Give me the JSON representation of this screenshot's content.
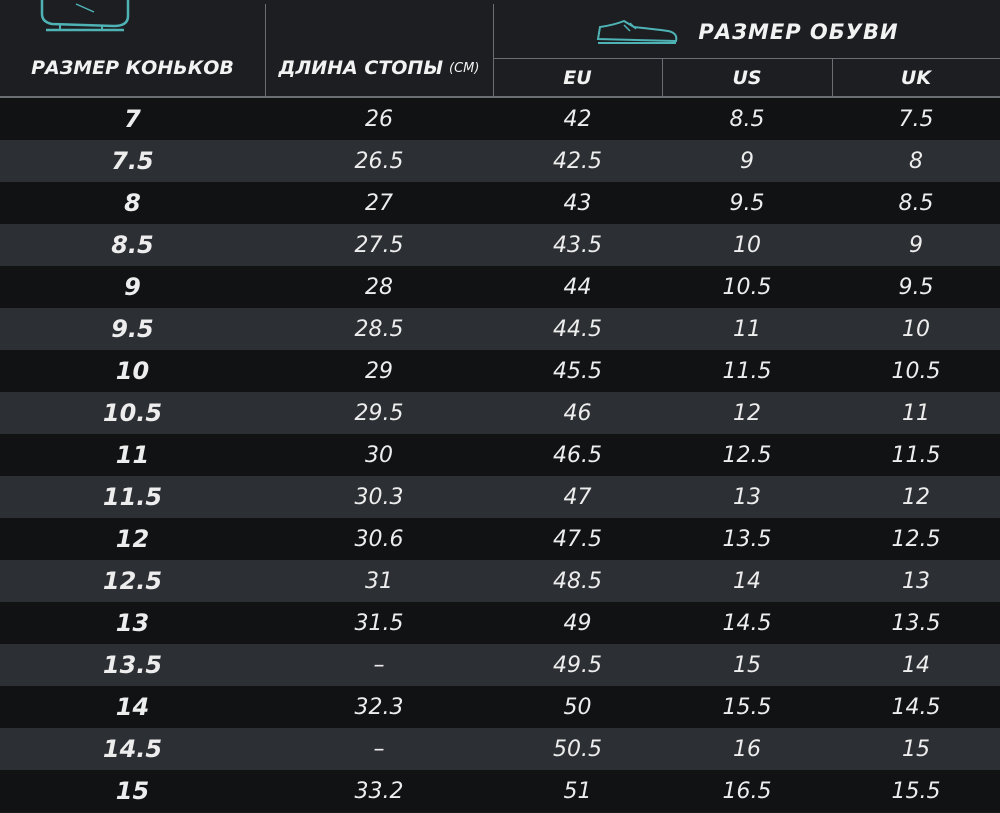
{
  "header": {
    "skate_size_label": "РАЗМЕР КОНЬКОВ",
    "foot_length_label": "ДЛИНА СТОПЫ",
    "foot_length_unit": "(СМ)",
    "shoe_size_label": "РАЗМЕР ОБУВИ",
    "eu_label": "EU",
    "us_label": "US",
    "uk_label": "UK"
  },
  "icons": {
    "skate": "ice-skate-icon",
    "shoe": "sneaker-icon"
  },
  "colors": {
    "icon_accent": "#4fb3b6",
    "row_dark": "#101214",
    "row_light": "#2c2f33"
  },
  "rows": [
    {
      "skate": "7",
      "foot": "26",
      "eu": "42",
      "us": "8.5",
      "uk": "7.5"
    },
    {
      "skate": "7.5",
      "foot": "26.5",
      "eu": "42.5",
      "us": "9",
      "uk": "8"
    },
    {
      "skate": "8",
      "foot": "27",
      "eu": "43",
      "us": "9.5",
      "uk": "8.5"
    },
    {
      "skate": "8.5",
      "foot": "27.5",
      "eu": "43.5",
      "us": "10",
      "uk": "9"
    },
    {
      "skate": "9",
      "foot": "28",
      "eu": "44",
      "us": "10.5",
      "uk": "9.5"
    },
    {
      "skate": "9.5",
      "foot": "28.5",
      "eu": "44.5",
      "us": "11",
      "uk": "10"
    },
    {
      "skate": "10",
      "foot": "29",
      "eu": "45.5",
      "us": "11.5",
      "uk": "10.5"
    },
    {
      "skate": "10.5",
      "foot": "29.5",
      "eu": "46",
      "us": "12",
      "uk": "11"
    },
    {
      "skate": "11",
      "foot": "30",
      "eu": "46.5",
      "us": "12.5",
      "uk": "11.5"
    },
    {
      "skate": "11.5",
      "foot": "30.3",
      "eu": "47",
      "us": "13",
      "uk": "12"
    },
    {
      "skate": "12",
      "foot": "30.6",
      "eu": "47.5",
      "us": "13.5",
      "uk": "12.5"
    },
    {
      "skate": "12.5",
      "foot": "31",
      "eu": "48.5",
      "us": "14",
      "uk": "13"
    },
    {
      "skate": "13",
      "foot": "31.5",
      "eu": "49",
      "us": "14.5",
      "uk": "13.5"
    },
    {
      "skate": "13.5",
      "foot": "–",
      "eu": "49.5",
      "us": "15",
      "uk": "14"
    },
    {
      "skate": "14",
      "foot": "32.3",
      "eu": "50",
      "us": "15.5",
      "uk": "14.5"
    },
    {
      "skate": "14.5",
      "foot": "–",
      "eu": "50.5",
      "us": "16",
      "uk": "15"
    },
    {
      "skate": "15",
      "foot": "33.2",
      "eu": "51",
      "us": "16.5",
      "uk": "15.5"
    }
  ]
}
